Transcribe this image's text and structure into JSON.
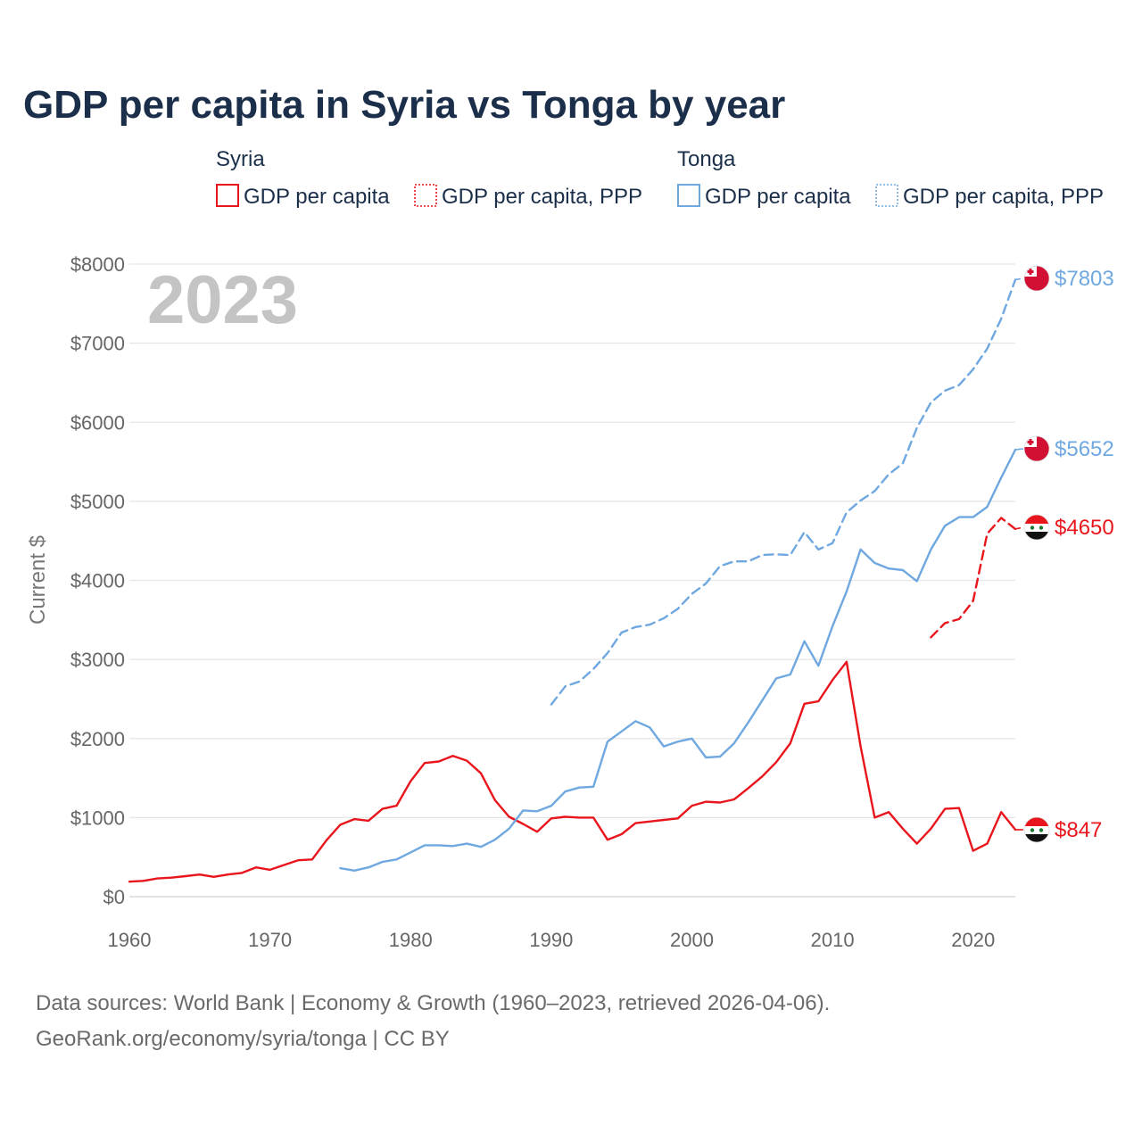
{
  "chart_data": {
    "type": "line",
    "title": "GDP per capita in Syria vs Tonga by year",
    "ylabel": "Current $",
    "xlabel": "",
    "xlim": [
      1960,
      2023
    ],
    "ylim": [
      0,
      8000
    ],
    "x_ticks": [
      1960,
      1970,
      1980,
      1990,
      2000,
      2010,
      2020
    ],
    "x_tick_labels": [
      "1960",
      "1970",
      "1980",
      "1990",
      "2000",
      "2010",
      "2020"
    ],
    "y_ticks": [
      0,
      1000,
      2000,
      3000,
      4000,
      5000,
      6000,
      7000,
      8000
    ],
    "y_tick_labels": [
      "$0",
      "$1000",
      "$2000",
      "$3000",
      "$4000",
      "$5000",
      "$6000",
      "$7000",
      "$8000"
    ],
    "year_label": "2023",
    "grid": true,
    "legend": {
      "placement": "top",
      "groups": [
        {
          "name": "Syria",
          "items": [
            "GDP per capita",
            "GDP per capita, PPP"
          ]
        },
        {
          "name": "Tonga",
          "items": [
            "GDP per capita",
            "GDP per capita, PPP"
          ]
        }
      ]
    },
    "series": [
      {
        "id": "syria-gdp",
        "country": "Syria",
        "name": "GDP per capita",
        "color": "#e8161c",
        "dashed": false,
        "end_label": "$847",
        "x": [
          1960,
          1961,
          1962,
          1963,
          1964,
          1965,
          1966,
          1967,
          1968,
          1969,
          1970,
          1971,
          1972,
          1973,
          1974,
          1975,
          1976,
          1977,
          1978,
          1979,
          1980,
          1981,
          1982,
          1983,
          1984,
          1985,
          1986,
          1987,
          1988,
          1989,
          1990,
          1991,
          1992,
          1993,
          1994,
          1995,
          1996,
          1997,
          1998,
          1999,
          2000,
          2001,
          2002,
          2003,
          2004,
          2005,
          2006,
          2007,
          2008,
          2009,
          2010,
          2011,
          2012,
          2013,
          2014,
          2015,
          2016,
          2017,
          2018,
          2019,
          2020,
          2021,
          2022,
          2023
        ],
        "values": [
          190,
          200,
          230,
          240,
          260,
          280,
          250,
          280,
          300,
          370,
          340,
          400,
          460,
          470,
          710,
          910,
          980,
          960,
          1110,
          1150,
          1460,
          1690,
          1710,
          1780,
          1720,
          1560,
          1220,
          1010,
          920,
          820,
          990,
          1010,
          1000,
          1000,
          720,
          790,
          930,
          950,
          970,
          990,
          1150,
          1200,
          1190,
          1230,
          1370,
          1520,
          1700,
          1940,
          2440,
          2470,
          2740,
          2970,
          1900,
          1000,
          1070,
          860,
          670,
          860,
          1110,
          1120,
          580,
          670,
          1070,
          847
        ]
      },
      {
        "id": "syria-ppp",
        "country": "Syria",
        "name": "GDP per capita, PPP",
        "color": "#e8161c",
        "dashed": true,
        "end_label": "$4650",
        "x": [
          2017,
          2018,
          2019,
          2020,
          2021,
          2022,
          2023
        ],
        "values": [
          3280,
          3460,
          3510,
          3740,
          4590,
          4790,
          4650
        ]
      },
      {
        "id": "tonga-gdp",
        "country": "Tonga",
        "name": "GDP per capita",
        "color": "#6fa8e0",
        "dashed": false,
        "end_label": "$5652",
        "x": [
          1975,
          1976,
          1977,
          1978,
          1979,
          1980,
          1981,
          1982,
          1983,
          1984,
          1985,
          1986,
          1987,
          1988,
          1989,
          1990,
          1991,
          1992,
          1993,
          1994,
          1995,
          1996,
          1997,
          1998,
          1999,
          2000,
          2001,
          2002,
          2003,
          2004,
          2005,
          2006,
          2007,
          2008,
          2009,
          2010,
          2011,
          2012,
          2013,
          2014,
          2015,
          2016,
          2017,
          2018,
          2019,
          2020,
          2021,
          2022,
          2023
        ],
        "values": [
          360,
          330,
          370,
          440,
          470,
          560,
          650,
          650,
          640,
          670,
          630,
          720,
          860,
          1090,
          1080,
          1150,
          1330,
          1380,
          1390,
          1960,
          2090,
          2220,
          2140,
          1900,
          1960,
          2000,
          1760,
          1770,
          1940,
          2200,
          2480,
          2760,
          2810,
          3230,
          2920,
          3420,
          3860,
          4390,
          4220,
          4150,
          4130,
          3990,
          4390,
          4690,
          4800,
          4800,
          4930,
          5300,
          5652
        ]
      },
      {
        "id": "tonga-ppp",
        "country": "Tonga",
        "name": "GDP per capita, PPP",
        "color": "#6fa8e0",
        "dashed": true,
        "end_label": "$7803",
        "x": [
          1990,
          1991,
          1992,
          1993,
          1994,
          1995,
          1996,
          1997,
          1998,
          1999,
          2000,
          2001,
          2002,
          2003,
          2004,
          2005,
          2006,
          2007,
          2008,
          2009,
          2010,
          2011,
          2012,
          2013,
          2014,
          2015,
          2016,
          2017,
          2018,
          2019,
          2020,
          2021,
          2022,
          2023
        ],
        "values": [
          2430,
          2660,
          2720,
          2880,
          3080,
          3340,
          3410,
          3440,
          3520,
          3640,
          3830,
          3960,
          4180,
          4240,
          4240,
          4320,
          4330,
          4320,
          4610,
          4390,
          4470,
          4860,
          5010,
          5130,
          5340,
          5480,
          5930,
          6250,
          6400,
          6470,
          6670,
          6930,
          7310,
          7803
        ]
      }
    ],
    "sources": [
      "Data sources: World Bank | Economy & Growth (1960–2023, retrieved 2026-04-06).",
      "GeoRank.org/economy/syria/tonga | CC BY"
    ]
  }
}
